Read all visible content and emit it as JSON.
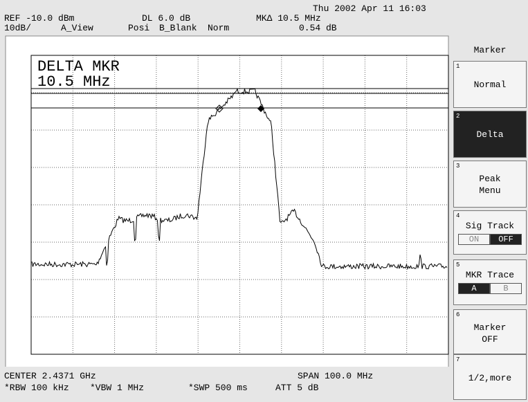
{
  "header": {
    "datetime": "Thu 2002 Apr 11 16:03",
    "ref": "REF -10.0 dBm",
    "dl": "DL 6.0 dB",
    "mkr_delta": "MKΔ 10.5 MHz",
    "scale": "10dB/",
    "view": "A_View",
    "detector": "Posi",
    "b_trace": "B_Blank",
    "mode": "Norm",
    "mkr_level": "0.54 dB"
  },
  "graticule": {
    "marker_label": "DELTA MKR",
    "marker_value": "10.5 MHz"
  },
  "footer": {
    "center": "CENTER 2.4371 GHz",
    "span": "SPAN 100.0 MHz",
    "rbw": "*RBW 100 kHz",
    "vbw": "*VBW 1 MHz",
    "swp": "*SWP 500 ms",
    "att": "ATT 5 dB"
  },
  "softkeys": {
    "title": "Marker",
    "buttons": [
      {
        "number": "1",
        "lines": [
          "Normal"
        ]
      },
      {
        "number": "2",
        "lines": [
          "Delta"
        ]
      },
      {
        "number": "3",
        "lines": [
          "Peak",
          "Menu"
        ]
      },
      {
        "number": "4",
        "lines": [
          "Sig Track"
        ],
        "options": [
          "ON",
          "OFF"
        ]
      },
      {
        "number": "5",
        "lines": [
          "MKR Trace"
        ],
        "options": [
          "A",
          "B"
        ]
      },
      {
        "number": "6",
        "lines": [
          "Marker",
          "OFF"
        ]
      },
      {
        "number": "7",
        "lines": [
          "1/2,more"
        ]
      }
    ]
  }
}
